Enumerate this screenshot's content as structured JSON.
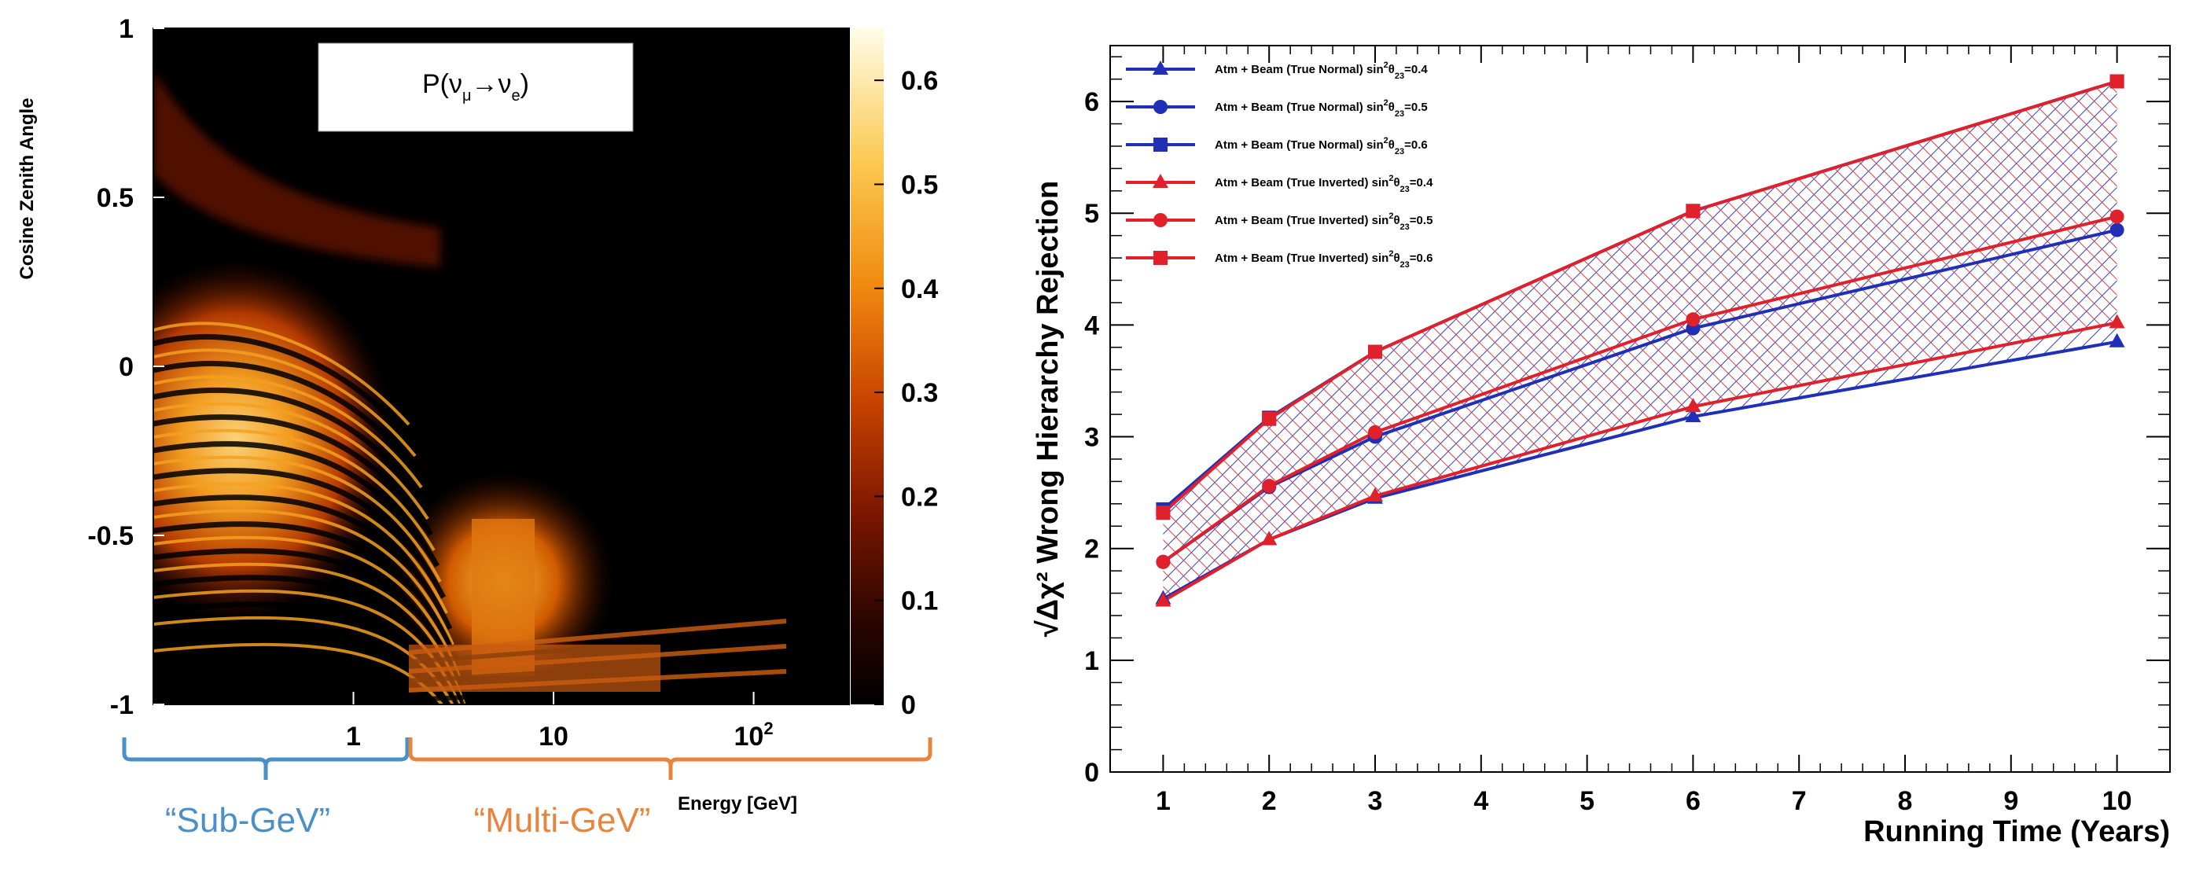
{
  "chart_data": [
    {
      "type": "heatmap",
      "title": "P(ν_μ→ν_e)",
      "title_parts": {
        "p": "P(ν",
        "mu": "μ",
        "arrow": "→ν",
        "e": "e",
        "close": ")"
      },
      "xlabel": "Energy [GeV]",
      "ylabel": "Cosine Zenith Angle",
      "xscale": "log",
      "xlim": [
        0.1,
        300
      ],
      "ylim": [
        -1,
        1
      ],
      "x_ticks": [
        {
          "value": 1,
          "label": "1"
        },
        {
          "value": 10,
          "label": "10"
        },
        {
          "value": 100,
          "label": "10",
          "exp": "2"
        }
      ],
      "y_ticks": [
        {
          "value": 1,
          "label": "1"
        },
        {
          "value": 0.5,
          "label": "0.5"
        },
        {
          "value": 0,
          "label": "0"
        },
        {
          "value": -0.5,
          "label": "-0.5"
        },
        {
          "value": -1,
          "label": "-1"
        }
      ],
      "colorbar": {
        "min": 0,
        "max": 0.65,
        "ticks": [
          0.6,
          0.5,
          0.4,
          0.3,
          0.2,
          0.1,
          0
        ],
        "tick_labels": [
          "0.6",
          "0.5",
          "0.4",
          "0.3",
          "0.2",
          "0.1",
          "0"
        ]
      },
      "regions": [
        {
          "label": "“Sub-GeV”",
          "color": "#4a90c8"
        },
        {
          "label": "“Multi-GeV”",
          "color": "#e8843c"
        }
      ]
    },
    {
      "type": "line",
      "xlabel": "Running Time (Years)",
      "ylabel": "Wrong Hierarchy Rejection",
      "ylabel_prefix": "√Δχ²",
      "xlim": [
        0.5,
        10.5
      ],
      "ylim": [
        0,
        6.5
      ],
      "x_ticks": [
        1,
        2,
        3,
        4,
        5,
        6,
        7,
        8,
        9,
        10
      ],
      "y_ticks": [
        0,
        1,
        2,
        3,
        4,
        5,
        6
      ],
      "x": [
        1,
        2,
        3,
        6,
        10
      ],
      "series": [
        {
          "name": "Atm + Beam (True Normal) sin²θ23=0.4",
          "legend": {
            "text": "Atm + Beam (True Normal) sin",
            "sup": "2",
            "theta": "θ",
            "sub": "23",
            "val": "=0.4"
          },
          "color": "#1f2fb8",
          "marker": "triangle",
          "values": [
            1.55,
            2.08,
            2.45,
            3.18,
            3.85
          ]
        },
        {
          "name": "Atm + Beam (True Normal) sin²θ23=0.5",
          "legend": {
            "text": "Atm + Beam (True Normal) sin",
            "sup": "2",
            "theta": "θ",
            "sub": "23",
            "val": "=0.5"
          },
          "color": "#1f2fb8",
          "marker": "circle",
          "values": [
            1.88,
            2.55,
            3.0,
            3.97,
            4.85
          ]
        },
        {
          "name": "Atm + Beam (True Normal) sin²θ23=0.6",
          "legend": {
            "text": "Atm + Beam (True Normal) sin",
            "sup": "2",
            "theta": "θ",
            "sub": "23",
            "val": "=0.6"
          },
          "color": "#1f2fb8",
          "marker": "square",
          "values": [
            2.35,
            3.17,
            3.76,
            5.02,
            6.18
          ]
        },
        {
          "name": "Atm + Beam (True Inverted) sin²θ23=0.4",
          "legend": {
            "text": "Atm + Beam (True Inverted) sin",
            "sup": "2",
            "theta": "θ",
            "sub": "23",
            "val": "=0.4"
          },
          "color": "#e0202a",
          "marker": "triangle",
          "values": [
            1.53,
            2.08,
            2.47,
            3.27,
            4.02
          ]
        },
        {
          "name": "Atm + Beam (True Inverted) sin²θ23=0.5",
          "legend": {
            "text": "Atm + Beam (True Inverted) sin",
            "sup": "2",
            "theta": "θ",
            "sub": "23",
            "val": "=0.5"
          },
          "color": "#e0202a",
          "marker": "circle",
          "values": [
            1.88,
            2.56,
            3.04,
            4.05,
            4.97
          ]
        },
        {
          "name": "Atm + Beam (True Inverted) sin²θ23=0.6",
          "legend": {
            "text": "Atm + Beam (True Inverted) sin",
            "sup": "2",
            "theta": "θ",
            "sub": "23",
            "val": "=0.6"
          },
          "color": "#e0202a",
          "marker": "square",
          "values": [
            2.32,
            3.16,
            3.76,
            5.02,
            6.18
          ]
        }
      ],
      "bands": [
        {
          "name": "normal-band",
          "lower_series": 0,
          "upper_series": 2,
          "color": "#1f2fb8"
        },
        {
          "name": "inverted-band",
          "lower_series": 3,
          "upper_series": 5,
          "color": "#e0202a"
        }
      ]
    }
  ]
}
